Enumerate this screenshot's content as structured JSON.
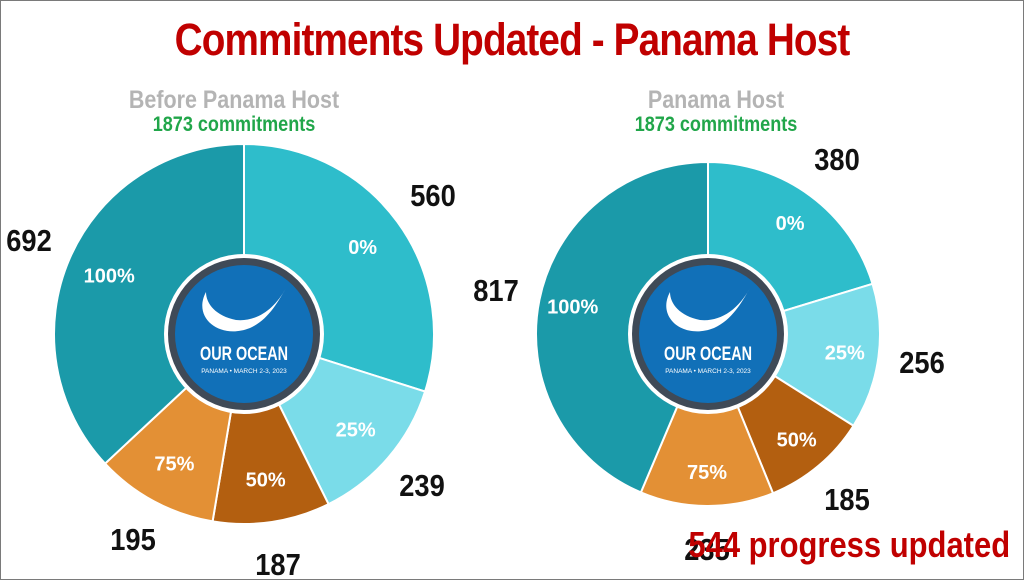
{
  "title": "Commitments Updated - Panama Host",
  "footer_note": "544 progress updated",
  "logo": {
    "name": "OUR OCEAN",
    "caption": "PANAMA • MARCH 2-3, 2023"
  },
  "colors": {
    "title": "#c00000",
    "subtitle": "#b4b4b4",
    "count": "#21a64a",
    "pct_100": "#1b9aa9",
    "pct_0": "#2ebdcb",
    "pct_25": "#7adce9",
    "pct_50": "#b35f10",
    "pct_75": "#e39035",
    "hub_ring": "#3f4a57",
    "hub_fill": "#1170b8"
  },
  "chart_data": [
    {
      "type": "pie",
      "title": "Before Panama Host",
      "subtitle": "1873 commitments",
      "categories": [
        "0%",
        "25%",
        "50%",
        "75%",
        "100%"
      ],
      "values": [
        560,
        239,
        187,
        195,
        692
      ]
    },
    {
      "type": "pie",
      "title": "Panama Host",
      "subtitle": "1873 commitments",
      "categories": [
        "0%",
        "25%",
        "50%",
        "75%",
        "100%"
      ],
      "values": [
        380,
        256,
        185,
        235,
        817
      ]
    }
  ]
}
